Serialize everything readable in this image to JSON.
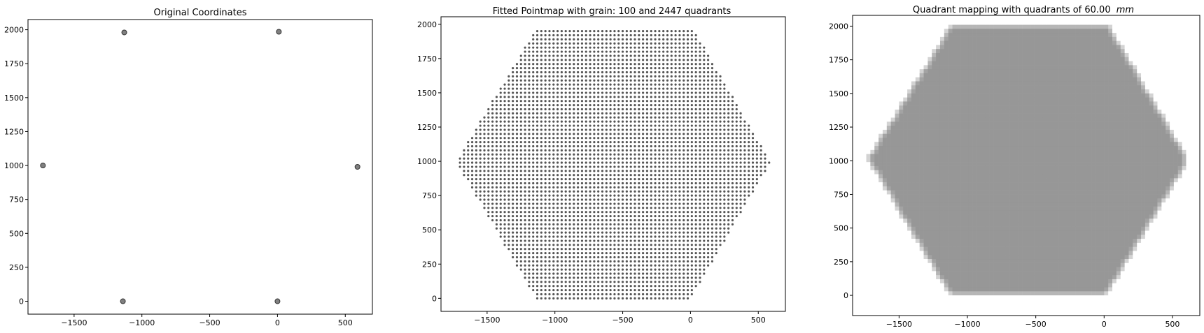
{
  "figure": {
    "background": "#ffffff"
  },
  "chart_data": [
    {
      "type": "scatter",
      "title": "Original Coordinates",
      "xlabel": "",
      "ylabel": "",
      "xlim": [
        -1840,
        700
      ],
      "ylim": [
        -95,
        2075
      ],
      "xticks": [
        -1500,
        -1000,
        -500,
        0,
        500
      ],
      "yticks": [
        0,
        250,
        500,
        750,
        1000,
        1250,
        1500,
        1750,
        2000
      ],
      "points": {
        "x": [
          -1130,
          10,
          -1730,
          590,
          -1140,
          0
        ],
        "y": [
          1980,
          1985,
          1000,
          990,
          0,
          0
        ]
      },
      "marker": {
        "fill": "#808080",
        "stroke": "#333333"
      }
    },
    {
      "type": "scatter",
      "title": "Fitted Pointmap with grain: 100 and 2447 quadrants",
      "xlabel": "",
      "ylabel": "",
      "xlim": [
        -1840,
        700
      ],
      "ylim": [
        -95,
        2055
      ],
      "xticks": [
        -1500,
        -1000,
        -500,
        0,
        500
      ],
      "yticks": [
        0,
        250,
        500,
        750,
        1000,
        1250,
        1500,
        1750,
        2000
      ],
      "grid_points": {
        "description_of_shape": "hexagon",
        "vertices": {
          "x": [
            -1130,
            10,
            -1730,
            590,
            -1140,
            0
          ],
          "y": [
            1980,
            1985,
            1000,
            990,
            0,
            0
          ]
        },
        "x_start": -1140,
        "x_end": 10,
        "y_start": 0,
        "y_end": 1950,
        "rows": [
          [
            -1130,
            0
          ],
          [
            -1700,
            950
          ],
          [
            -1130,
            1950
          ]
        ],
        "spacing_x": 30,
        "spacing_y": 30
      },
      "marker": {
        "fill": "#555555"
      }
    },
    {
      "type": "heatmap",
      "title": "Quadrant mapping with quadrants of 60.00",
      "title_unit": "mm",
      "xlabel": "",
      "ylabel": "",
      "xlim": [
        -1840,
        700
      ],
      "ylim": [
        -150,
        2080
      ],
      "xticks": [
        -1500,
        -1000,
        -500,
        0,
        500
      ],
      "yticks": [
        0,
        250,
        500,
        750,
        1000,
        1250,
        1500,
        1750,
        2000
      ],
      "cell_size": 60,
      "shape": {
        "vertices": {
          "x": [
            -1130,
            10,
            -1730,
            590,
            -1140,
            0
          ],
          "y": [
            1980,
            1985,
            1000,
            990,
            0,
            0
          ]
        }
      },
      "cell_color": "#808080"
    }
  ]
}
